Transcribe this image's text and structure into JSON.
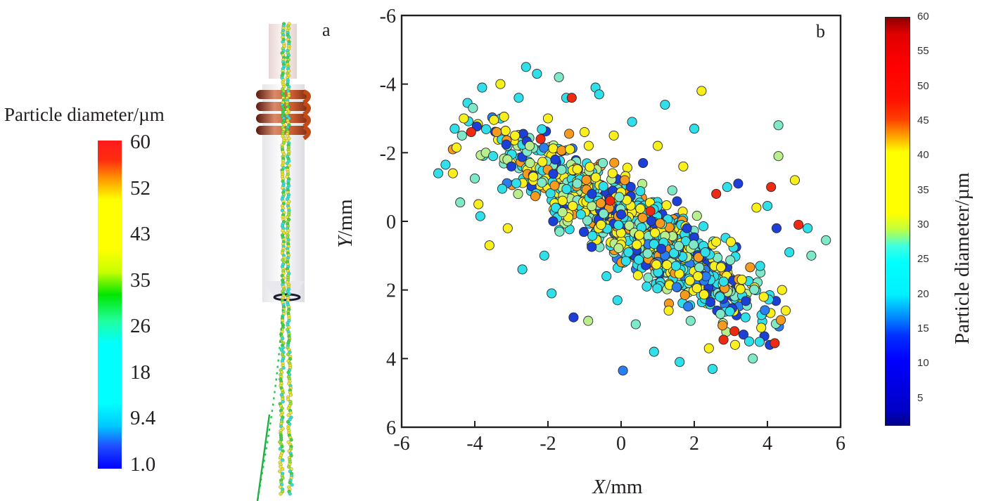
{
  "panel_a": {
    "label": "a",
    "legend_title": "Particle diameter/µm",
    "colorbar_ticks": [
      "60",
      "52",
      "43",
      "35",
      "26",
      "18",
      "9.4",
      "1.0"
    ],
    "description": "Simulated particle trajectories through a nozzle with induction coil"
  },
  "panel_b": {
    "label": "b",
    "colorbar_title": "Particle  diameter/µm",
    "colorbar_ticks": [
      "60",
      "55",
      "50",
      "45",
      "40",
      "35",
      "30",
      "25",
      "20",
      "15",
      "10",
      "5"
    ]
  },
  "chart_data": {
    "type": "scatter",
    "title": "",
    "xlabel_italic": "X",
    "xlabel_unit": "/mm",
    "ylabel_italic": "Y",
    "ylabel_unit": "/mm",
    "xlim": [
      -6,
      6
    ],
    "ylim": [
      -6,
      6
    ],
    "y_inverted": true,
    "x_ticks": [
      "-6",
      "-4",
      "-2",
      "0",
      "2",
      "4",
      "6"
    ],
    "y_ticks": [
      "-6",
      "-4",
      "-2",
      "0",
      "2",
      "4",
      "6"
    ],
    "grid": false,
    "color_encoding": "particle diameter (µm), jet colormap 1-60",
    "colorbar_range": [
      1,
      60
    ],
    "cloud_summary": {
      "approx_point_count": 1200,
      "x_range": [
        -5.0,
        5.6
      ],
      "y_range": [
        -4.6,
        4.4
      ],
      "trend": "elongated cloud from upper-left (x≈-3,y≈-2) to lower-right (x≈3,y≈2)",
      "dominant_diameters_um": [
        20,
        40
      ]
    },
    "points": [
      {
        "x": -5.0,
        "y": -1.4,
        "d": 24
      },
      {
        "x": -4.8,
        "y": -1.65,
        "d": 24
      },
      {
        "x": -4.6,
        "y": -1.4,
        "d": 40
      },
      {
        "x": -4.6,
        "y": -2.1,
        "d": 48
      },
      {
        "x": -4.55,
        "y": -2.7,
        "d": 24
      },
      {
        "x": -4.5,
        "y": -2.15,
        "d": 40
      },
      {
        "x": -4.4,
        "y": -0.55,
        "d": 28
      },
      {
        "x": -4.35,
        "y": -2.5,
        "d": 26
      },
      {
        "x": -4.3,
        "y": -3.0,
        "d": 40
      },
      {
        "x": -4.2,
        "y": -3.45,
        "d": 24
      },
      {
        "x": -4.1,
        "y": -2.6,
        "d": 55
      },
      {
        "x": -4.05,
        "y": -3.3,
        "d": 26
      },
      {
        "x": -4.0,
        "y": -1.25,
        "d": 26
      },
      {
        "x": -3.9,
        "y": -0.5,
        "d": 40
      },
      {
        "x": -3.85,
        "y": -0.15,
        "d": 24
      },
      {
        "x": -3.8,
        "y": -3.9,
        "d": 24
      },
      {
        "x": -3.7,
        "y": -2.0,
        "d": 30
      },
      {
        "x": -3.6,
        "y": 0.7,
        "d": 38
      },
      {
        "x": -3.5,
        "y": -1.9,
        "d": 24
      },
      {
        "x": -3.4,
        "y": -2.6,
        "d": 46
      },
      {
        "x": -3.3,
        "y": -4.0,
        "d": 40
      },
      {
        "x": -3.25,
        "y": -0.95,
        "d": 24
      },
      {
        "x": -3.2,
        "y": -3.05,
        "d": 38
      },
      {
        "x": -3.1,
        "y": 0.2,
        "d": 40
      },
      {
        "x": -3.0,
        "y": -1.6,
        "d": 12
      },
      {
        "x": -2.9,
        "y": -2.5,
        "d": 40
      },
      {
        "x": -2.8,
        "y": -3.6,
        "d": 24
      },
      {
        "x": -2.7,
        "y": 1.4,
        "d": 24
      },
      {
        "x": -2.6,
        "y": -4.5,
        "d": 24
      },
      {
        "x": -2.5,
        "y": -2.2,
        "d": 30
      },
      {
        "x": -2.4,
        "y": -1.3,
        "d": 40
      },
      {
        "x": -2.3,
        "y": -4.3,
        "d": 24
      },
      {
        "x": -2.2,
        "y": -2.4,
        "d": 58
      },
      {
        "x": -2.1,
        "y": 1.0,
        "d": 24
      },
      {
        "x": -2.0,
        "y": -3.0,
        "d": 40
      },
      {
        "x": -1.9,
        "y": 2.1,
        "d": 24
      },
      {
        "x": -1.8,
        "y": -1.8,
        "d": 12
      },
      {
        "x": -1.7,
        "y": -4.2,
        "d": 26
      },
      {
        "x": -1.6,
        "y": -0.6,
        "d": 40
      },
      {
        "x": -1.5,
        "y": -3.6,
        "d": 24
      },
      {
        "x": -1.4,
        "y": -2.1,
        "d": 40
      },
      {
        "x": -1.35,
        "y": -3.6,
        "d": 55
      },
      {
        "x": -1.3,
        "y": 2.8,
        "d": 12
      },
      {
        "x": -1.2,
        "y": -1.1,
        "d": 26
      },
      {
        "x": -1.1,
        "y": -0.2,
        "d": 24
      },
      {
        "x": -1.0,
        "y": -2.6,
        "d": 40
      },
      {
        "x": -0.9,
        "y": 2.9,
        "d": 34
      },
      {
        "x": -0.8,
        "y": -0.8,
        "d": 12
      },
      {
        "x": -0.7,
        "y": -3.9,
        "d": 24
      },
      {
        "x": -0.6,
        "y": -3.7,
        "d": 24
      },
      {
        "x": -0.55,
        "y": 0.1,
        "d": 40
      },
      {
        "x": -0.5,
        "y": -1.7,
        "d": 26
      },
      {
        "x": -0.4,
        "y": 1.6,
        "d": 24
      },
      {
        "x": -0.3,
        "y": -0.6,
        "d": 55
      },
      {
        "x": -0.2,
        "y": -2.5,
        "d": 40
      },
      {
        "x": -0.1,
        "y": 2.3,
        "d": 24
      },
      {
        "x": 0.0,
        "y": -0.2,
        "d": 12
      },
      {
        "x": 0.05,
        "y": 4.35,
        "d": 16
      },
      {
        "x": 0.1,
        "y": -1.2,
        "d": 46
      },
      {
        "x": 0.2,
        "y": 0.9,
        "d": 24
      },
      {
        "x": 0.3,
        "y": -2.9,
        "d": 24
      },
      {
        "x": 0.4,
        "y": 3.0,
        "d": 26
      },
      {
        "x": 0.5,
        "y": 0.4,
        "d": 40
      },
      {
        "x": 0.6,
        "y": -1.7,
        "d": 12
      },
      {
        "x": 0.7,
        "y": 1.9,
        "d": 24
      },
      {
        "x": 0.8,
        "y": -0.3,
        "d": 55
      },
      {
        "x": 0.9,
        "y": 3.8,
        "d": 24
      },
      {
        "x": 1.0,
        "y": -2.2,
        "d": 40
      },
      {
        "x": 1.1,
        "y": 0.8,
        "d": 12
      },
      {
        "x": 1.2,
        "y": -3.4,
        "d": 24
      },
      {
        "x": 1.3,
        "y": 2.6,
        "d": 40
      },
      {
        "x": 1.4,
        "y": -0.9,
        "d": 26
      },
      {
        "x": 1.5,
        "y": 1.3,
        "d": 24
      },
      {
        "x": 1.6,
        "y": 4.1,
        "d": 24
      },
      {
        "x": 1.7,
        "y": -1.6,
        "d": 40
      },
      {
        "x": 1.8,
        "y": 0.2,
        "d": 12
      },
      {
        "x": 1.9,
        "y": 2.9,
        "d": 28
      },
      {
        "x": 2.0,
        "y": -2.7,
        "d": 24
      },
      {
        "x": 2.1,
        "y": 1.6,
        "d": 40
      },
      {
        "x": 2.2,
        "y": -3.8,
        "d": 40
      },
      {
        "x": 2.3,
        "y": 0.9,
        "d": 24
      },
      {
        "x": 2.4,
        "y": 3.7,
        "d": 40
      },
      {
        "x": 2.5,
        "y": 4.3,
        "d": 24
      },
      {
        "x": 2.6,
        "y": -0.8,
        "d": 55
      },
      {
        "x": 2.7,
        "y": 2.2,
        "d": 24
      },
      {
        "x": 2.8,
        "y": 3.45,
        "d": 55
      },
      {
        "x": 2.9,
        "y": -1.0,
        "d": 24
      },
      {
        "x": 3.0,
        "y": 0.6,
        "d": 40
      },
      {
        "x": 3.1,
        "y": 3.2,
        "d": 55
      },
      {
        "x": 3.2,
        "y": -1.1,
        "d": 12
      },
      {
        "x": 3.3,
        "y": 1.7,
        "d": 40
      },
      {
        "x": 3.4,
        "y": 2.8,
        "d": 24
      },
      {
        "x": 3.5,
        "y": 3.5,
        "d": 24
      },
      {
        "x": 3.6,
        "y": 4.0,
        "d": 26
      },
      {
        "x": 3.7,
        "y": -0.4,
        "d": 40
      },
      {
        "x": 3.8,
        "y": 1.3,
        "d": 24
      },
      {
        "x": 3.9,
        "y": 2.2,
        "d": 40
      },
      {
        "x": 4.0,
        "y": -0.45,
        "d": 24
      },
      {
        "x": 4.1,
        "y": -1.0,
        "d": 55
      },
      {
        "x": 4.2,
        "y": 3.55,
        "d": 55
      },
      {
        "x": 4.25,
        "y": 0.2,
        "d": 12
      },
      {
        "x": 4.3,
        "y": -2.8,
        "d": 28
      },
      {
        "x": 4.3,
        "y": -1.9,
        "d": 30
      },
      {
        "x": 4.4,
        "y": 2.0,
        "d": 40
      },
      {
        "x": 4.5,
        "y": 2.6,
        "d": 38
      },
      {
        "x": 4.6,
        "y": 0.9,
        "d": 24
      },
      {
        "x": 4.75,
        "y": -1.2,
        "d": 36
      },
      {
        "x": 4.85,
        "y": 0.1,
        "d": 55
      },
      {
        "x": 5.1,
        "y": 0.2,
        "d": 24
      },
      {
        "x": 5.2,
        "y": 1.0,
        "d": 26
      },
      {
        "x": 5.6,
        "y": 0.55,
        "d": 28
      }
    ]
  }
}
